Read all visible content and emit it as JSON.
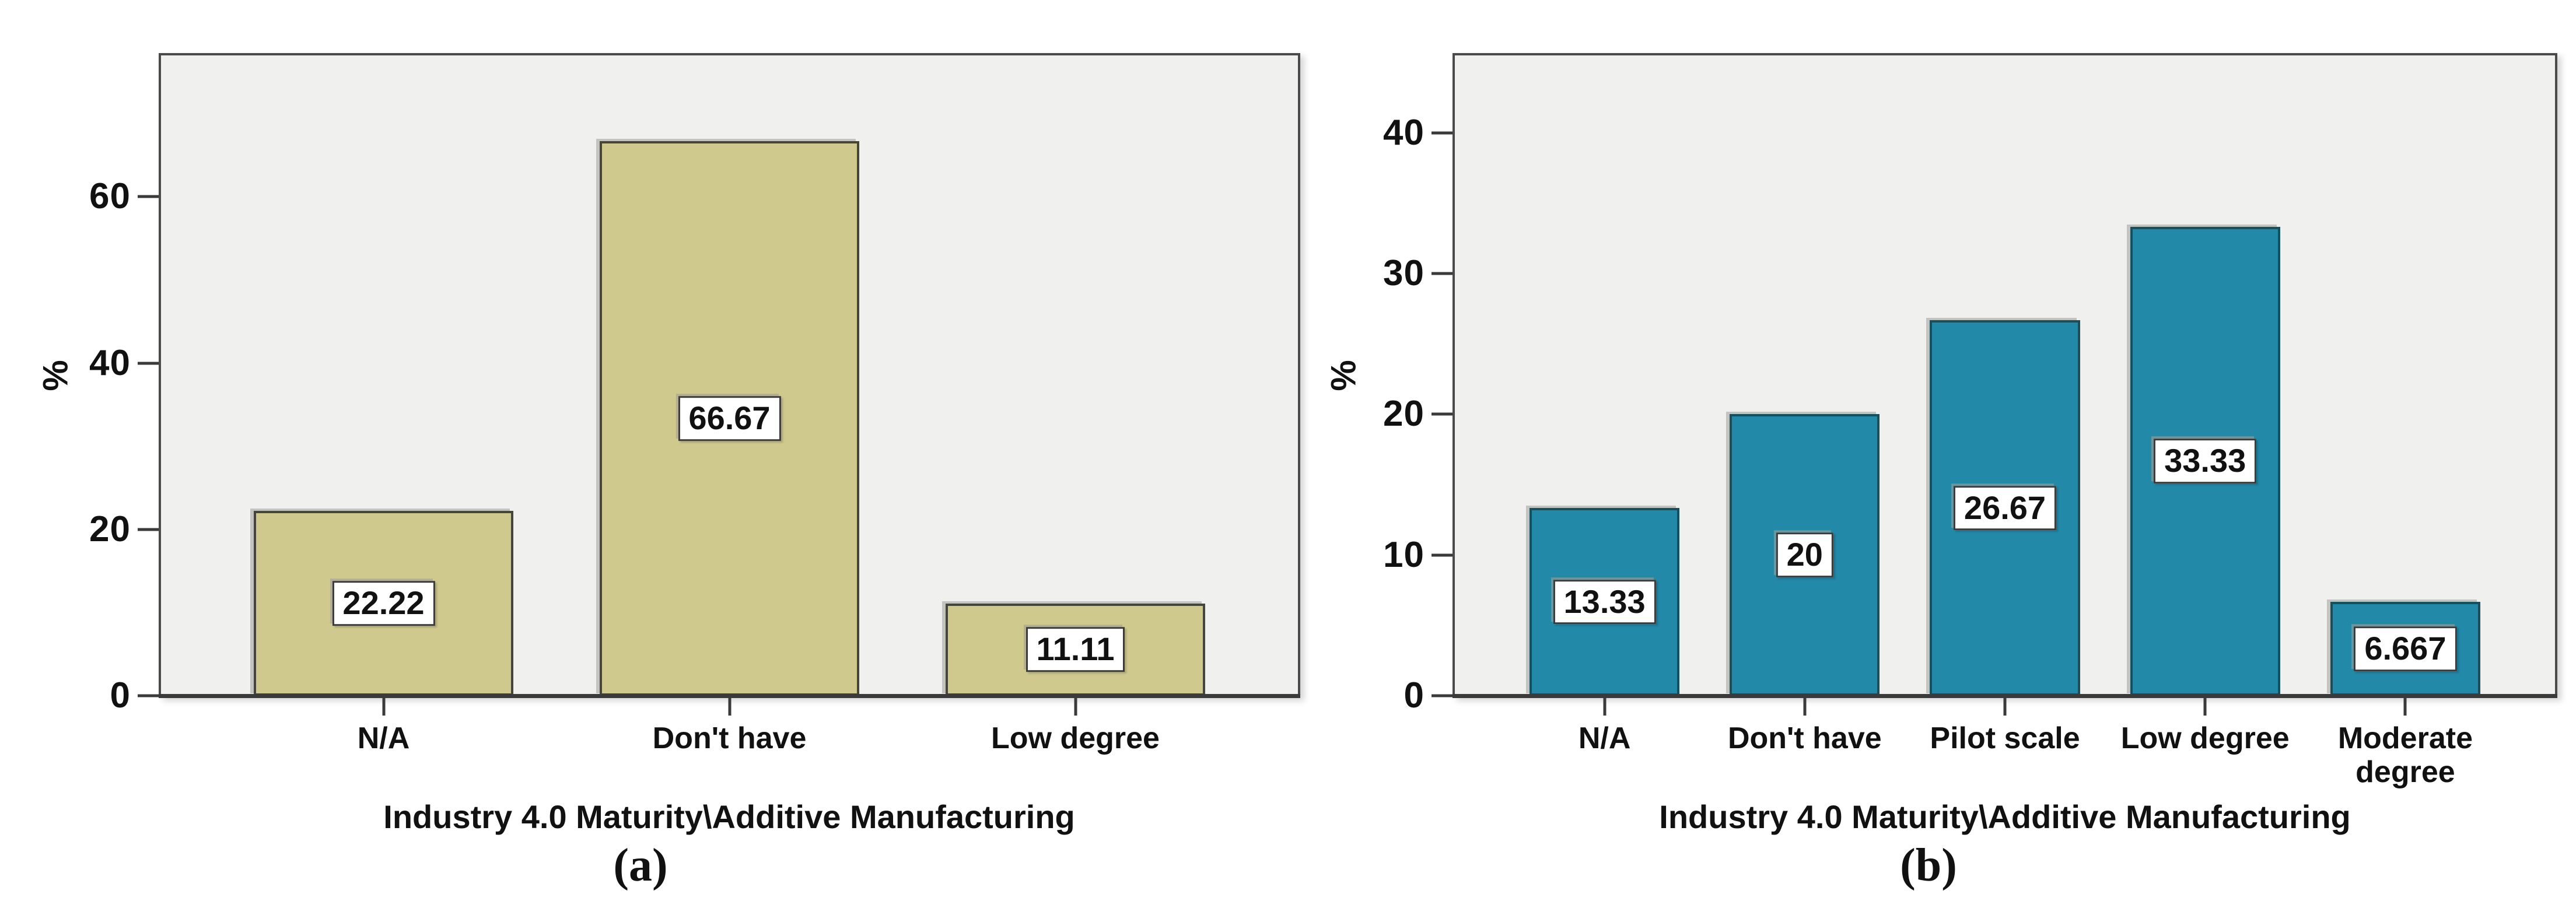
{
  "figure": {
    "description": "Two SPSS-style percentage bar charts for Industry 4.0 Maturity / Additive Manufacturing",
    "background": "#ffffff"
  },
  "chart_data": [
    {
      "type": "bar",
      "title": "",
      "xlabel": "Industry 4.0 Maturity\\Additive Manufacturing",
      "ylabel": "%",
      "caption": "(a)",
      "categories": [
        "N/A",
        "Don't have",
        "Low degree"
      ],
      "values": [
        22.22,
        66.67,
        11.11
      ],
      "value_labels": [
        "22.22",
        "66.67",
        "11.11"
      ],
      "yticks": [
        0,
        20,
        40,
        60
      ],
      "ylim": [
        0,
        77
      ],
      "grid": false,
      "legend": "none",
      "bar_color": "#cfc98e",
      "bar_border_color": "#45453a",
      "plot_bg_color": "#f0f0ef",
      "axis_color": "#3a3a3a"
    },
    {
      "type": "bar",
      "title": "",
      "xlabel": "Industry 4.0 Maturity\\Additive Manufacturing",
      "ylabel": "%",
      "caption": "(b)",
      "categories": [
        "N/A",
        "Don't have",
        "Pilot scale",
        "Low degree",
        "Moderate degree"
      ],
      "values": [
        13.33,
        20,
        26.67,
        33.33,
        6.667
      ],
      "value_labels": [
        "13.33",
        "20",
        "26.67",
        "33.33",
        "6.667"
      ],
      "yticks": [
        0,
        10,
        20,
        30,
        40
      ],
      "ylim": [
        0,
        45.5
      ],
      "grid": false,
      "legend": "none",
      "bar_color": "#2289a9",
      "bar_border_color": "#174f5d",
      "plot_bg_color": "#f0f0ef",
      "axis_color": "#3a3a3a"
    }
  ]
}
